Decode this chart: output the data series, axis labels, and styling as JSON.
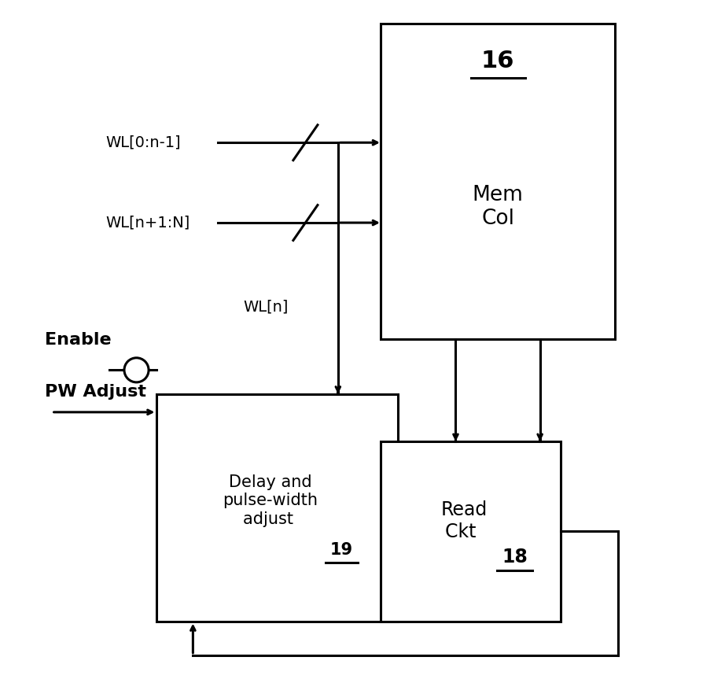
{
  "bg_color": "#ffffff",
  "line_color": "#000000",
  "fig_width": 9.08,
  "fig_height": 8.63,
  "mem_col_label_16": "16",
  "mem_col_label_text": "Mem\nCol",
  "delay_label_text": "Delay and\npulse-width\nadjust ",
  "delay_label_19": "19",
  "read_label_text": "Read\nCkt ",
  "read_label_18": "18",
  "wl0_label": "WL[0:n-1]",
  "wl1_label": "WL[n+1:N]",
  "wln_label": "WL[n]",
  "enable_label": "Enable",
  "pw_label": "PW Adjust"
}
